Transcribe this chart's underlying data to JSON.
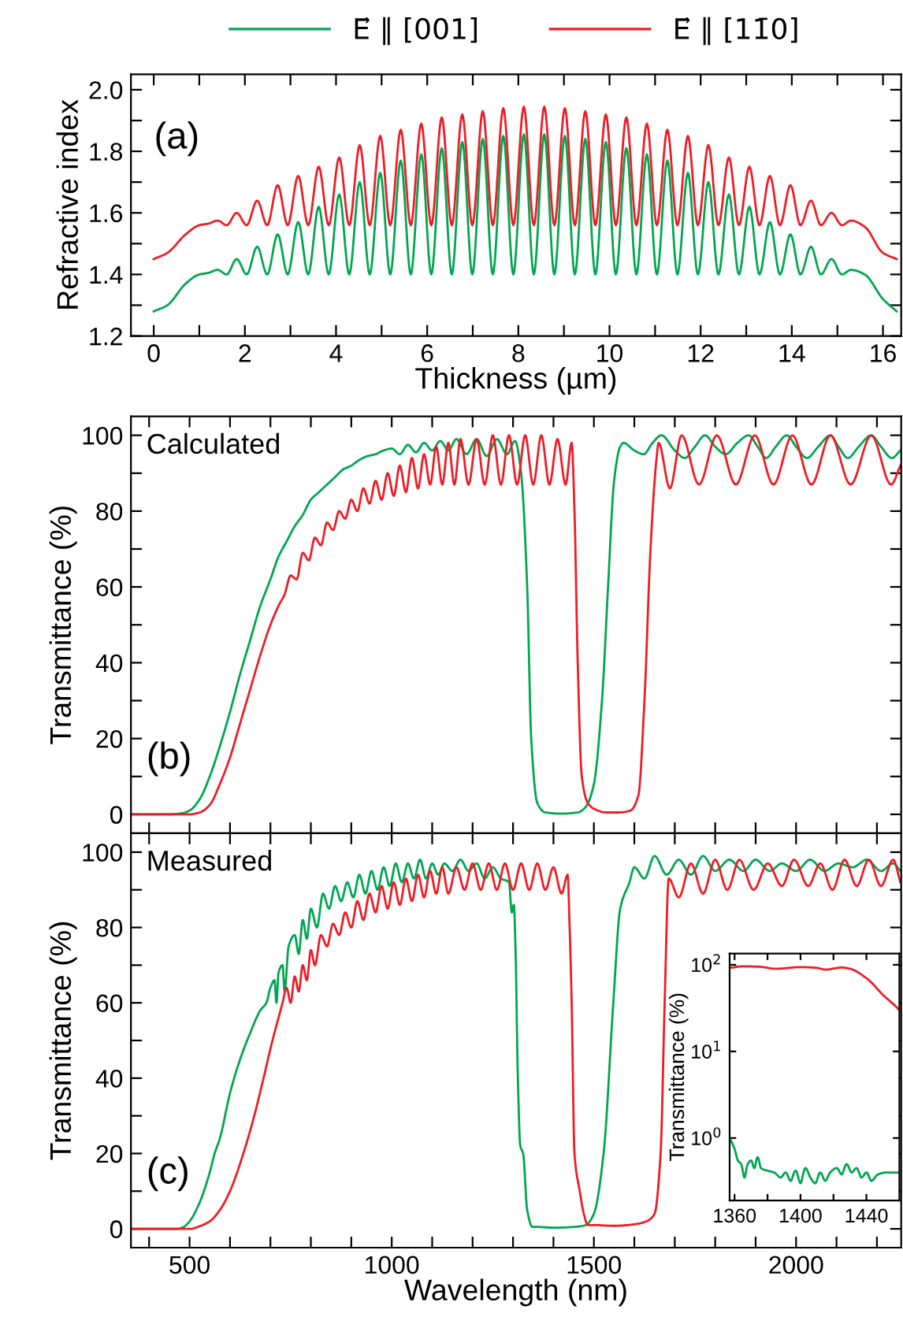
{
  "chart_data": [
    {
      "type": "line",
      "xlabel": "Thickness (µm)",
      "ylabel": "Refractive index",
      "annotations": [
        "(a)"
      ],
      "legend": "top",
      "xlim": [
        -0.5,
        16.4
      ],
      "xticks": [
        0,
        {
          "value": 1,
          "label": null
        },
        2,
        {
          "value": 3,
          "label": null
        },
        4,
        {
          "value": 5,
          "label": null
        },
        6,
        {
          "value": 7,
          "label": null
        },
        8,
        {
          "value": 9,
          "label": null
        },
        10,
        {
          "value": 11,
          "label": null
        },
        12,
        {
          "value": 13,
          "label": null
        },
        14,
        {
          "value": 15,
          "label": null
        },
        16
      ],
      "ylim": [
        1.2,
        2.05
      ],
      "yticks": [
        {
          "value": 1.2,
          "label": "1.2"
        },
        {
          "value": 1.3,
          "label": null
        },
        {
          "value": 1.4,
          "label": "1.4"
        },
        {
          "value": 1.5,
          "label": null
        },
        {
          "value": 1.6,
          "label": "1.6"
        },
        {
          "value": 1.7,
          "label": null
        },
        {
          "value": 1.8,
          "label": "1.8"
        },
        {
          "value": 1.9,
          "label": null
        },
        {
          "value": 2.0,
          "label": "2.0"
        }
      ],
      "x": [
        0,
        0.3,
        0.7,
        1.0,
        1.2,
        1.4,
        1.6,
        1.82,
        2.04,
        2.27,
        2.49,
        2.72,
        2.94,
        3.17,
        3.39,
        3.62,
        3.84,
        4.07,
        4.29,
        4.52,
        4.74,
        4.97,
        5.19,
        5.42,
        5.64,
        5.87,
        6.09,
        6.32,
        6.54,
        6.77,
        6.99,
        7.22,
        7.44,
        7.67,
        7.89,
        8.12,
        8.34,
        8.57,
        8.79,
        9.02,
        9.24,
        9.47,
        9.69,
        9.92,
        10.14,
        10.37,
        10.59,
        10.82,
        11.04,
        11.27,
        11.49,
        11.72,
        11.94,
        12.17,
        12.39,
        12.62,
        12.84,
        13.07,
        13.29,
        13.52,
        13.74,
        13.97,
        14.19,
        14.42,
        14.64,
        14.87,
        15.1,
        15.3,
        15.6,
        16.0,
        16.3
      ],
      "series": [
        {
          "name": "E⃗ ∥ [001]",
          "color": "#00a650",
          "values": [
            1.28,
            1.3,
            1.37,
            1.4,
            1.405,
            1.415,
            1.4,
            1.45,
            1.4,
            1.49,
            1.4,
            1.53,
            1.4,
            1.57,
            1.4,
            1.62,
            1.4,
            1.66,
            1.4,
            1.7,
            1.4,
            1.73,
            1.4,
            1.77,
            1.4,
            1.79,
            1.4,
            1.81,
            1.4,
            1.83,
            1.4,
            1.84,
            1.4,
            1.85,
            1.4,
            1.855,
            1.4,
            1.855,
            1.4,
            1.85,
            1.4,
            1.84,
            1.4,
            1.83,
            1.4,
            1.81,
            1.4,
            1.79,
            1.4,
            1.77,
            1.4,
            1.73,
            1.4,
            1.7,
            1.4,
            1.66,
            1.4,
            1.62,
            1.4,
            1.57,
            1.4,
            1.53,
            1.4,
            1.49,
            1.4,
            1.45,
            1.4,
            1.415,
            1.4,
            1.32,
            1.28
          ]
        },
        {
          "name": "E⃗ ∥ [11̄0]",
          "color": "#ee1c25",
          "values": [
            1.45,
            1.47,
            1.53,
            1.56,
            1.565,
            1.575,
            1.56,
            1.6,
            1.56,
            1.64,
            1.56,
            1.69,
            1.56,
            1.72,
            1.56,
            1.75,
            1.56,
            1.78,
            1.56,
            1.82,
            1.56,
            1.85,
            1.56,
            1.87,
            1.56,
            1.89,
            1.56,
            1.91,
            1.56,
            1.92,
            1.56,
            1.93,
            1.56,
            1.94,
            1.56,
            1.945,
            1.56,
            1.945,
            1.56,
            1.94,
            1.56,
            1.93,
            1.56,
            1.92,
            1.56,
            1.91,
            1.56,
            1.89,
            1.56,
            1.87,
            1.56,
            1.85,
            1.56,
            1.82,
            1.56,
            1.78,
            1.56,
            1.75,
            1.56,
            1.72,
            1.56,
            1.69,
            1.56,
            1.64,
            1.56,
            1.6,
            1.56,
            1.575,
            1.555,
            1.47,
            1.45
          ]
        }
      ]
    },
    {
      "type": "line",
      "ylabel": "Transmittance (%)",
      "annotations": [
        "Calculated",
        "(b)"
      ],
      "tick_labels": "y",
      "xlim": [
        355,
        2260
      ],
      "xticks": [
        {
          "value": 400,
          "label": null
        },
        500,
        {
          "value": 600,
          "label": null
        },
        {
          "value": 700,
          "label": null
        },
        {
          "value": 800,
          "label": null
        },
        {
          "value": 900,
          "label": null
        },
        1000,
        {
          "value": 1100,
          "label": null
        },
        {
          "value": 1200,
          "label": null
        },
        {
          "value": 1300,
          "label": null
        },
        {
          "value": 1400,
          "label": null
        },
        1500,
        {
          "value": 1600,
          "label": null
        },
        {
          "value": 1700,
          "label": null
        },
        {
          "value": 1800,
          "label": null
        },
        {
          "value": 1900,
          "label": null
        },
        2000,
        {
          "value": 2100,
          "label": null
        },
        {
          "value": 2200,
          "label": null
        }
      ],
      "ylim": [
        -5,
        105
      ],
      "yticks": [
        0,
        {
          "value": 10,
          "label": null
        },
        20,
        {
          "value": 30,
          "label": null
        },
        40,
        {
          "value": 50,
          "label": null
        },
        60,
        {
          "value": 70,
          "label": null
        },
        80,
        {
          "value": 90,
          "label": null
        },
        100
      ],
      "series": [
        {
          "color": "#00a650",
          "x": [
            355,
            450,
            480,
            500,
            525,
            550,
            575,
            600,
            625,
            650,
            675,
            700,
            720,
            740,
            760,
            780,
            800,
            820,
            840,
            860,
            880,
            900,
            920,
            940,
            960,
            980,
            1000,
            1020,
            1040,
            1060,
            1080,
            1100,
            1120,
            1140,
            1160,
            1185,
            1210,
            1235,
            1260,
            1285,
            1305,
            1320,
            1335,
            1345,
            1360,
            1380,
            1420,
            1460,
            1480,
            1500,
            1520,
            1535,
            1550,
            1565,
            1573,
            1600,
            1623,
            1645,
            1667,
            1700,
            1725,
            1750,
            1775,
            1800,
            1826,
            1855,
            1883,
            1905,
            1926,
            1950,
            1977,
            2000,
            2027,
            2055,
            2085,
            2105,
            2128,
            2155,
            2186,
            2210,
            2237,
            2258
          ],
          "values": [
            0,
            0,
            0.3,
            1,
            4,
            10,
            18,
            27,
            37,
            46,
            55,
            62,
            68,
            72,
            76,
            79,
            83,
            85,
            87,
            89,
            91,
            92,
            93.5,
            94.5,
            95,
            96,
            96.5,
            95,
            97.5,
            95.5,
            98,
            96,
            98.5,
            96,
            99,
            95,
            99,
            94.5,
            99,
            95,
            98.5,
            90,
            60,
            20,
            3,
            0.5,
            0.2,
            0.5,
            2,
            8,
            30,
            60,
            88,
            97,
            98,
            96,
            95,
            98,
            100,
            96,
            94,
            97,
            100,
            97,
            95,
            98,
            100,
            97,
            94,
            97,
            100,
            97,
            94,
            97,
            100,
            97,
            94,
            97,
            100,
            97,
            94,
            96
          ]
        },
        {
          "color": "#ee1c25",
          "x": [
            355,
            500,
            525,
            550,
            575,
            600,
            625,
            650,
            675,
            700,
            720,
            735,
            750,
            765,
            780,
            795,
            810,
            825,
            840,
            855,
            870,
            885,
            900,
            915,
            930,
            945,
            960,
            975,
            990,
            1005,
            1020,
            1035,
            1050,
            1065,
            1080,
            1095,
            1110,
            1125,
            1140,
            1155,
            1170,
            1190,
            1210,
            1230,
            1250,
            1270,
            1290,
            1310,
            1330,
            1350,
            1370,
            1390,
            1410,
            1430,
            1445,
            1452,
            1460,
            1470,
            1485,
            1500,
            1530,
            1560,
            1590,
            1610,
            1625,
            1640,
            1655,
            1660,
            1688,
            1717,
            1760,
            1804,
            1851,
            1898,
            1944,
            1991,
            2038,
            2085,
            2135,
            2186,
            2235,
            2258
          ],
          "values": [
            0,
            0,
            0.5,
            2.5,
            8,
            15,
            24,
            33,
            42,
            50,
            55,
            58,
            63,
            62,
            69,
            67,
            73,
            71,
            77,
            75,
            80,
            78,
            83,
            80,
            86,
            82,
            88,
            83,
            90,
            84,
            92,
            85,
            94,
            86,
            95,
            87,
            97,
            87,
            98,
            87,
            99,
            87,
            99,
            87,
            100,
            87,
            100,
            87,
            100,
            87,
            100,
            87,
            99,
            87,
            98,
            80,
            40,
            10,
            3,
            1.5,
            0.5,
            0.5,
            1,
            5,
            30,
            70,
            94,
            98,
            86,
            100,
            87,
            100,
            87,
            100,
            87,
            100,
            87,
            100,
            87,
            100,
            87,
            92
          ]
        }
      ]
    },
    {
      "type": "line",
      "xlabel": "Wavelength (nm)",
      "ylabel": "Transmittance (%)",
      "annotations": [
        "Measured",
        "(c)"
      ],
      "xlim": [
        355,
        2260
      ],
      "xticks": [
        {
          "value": 400,
          "label": null
        },
        500,
        {
          "value": 600,
          "label": null
        },
        {
          "value": 700,
          "label": null
        },
        {
          "value": 800,
          "label": null
        },
        {
          "value": 900,
          "label": null
        },
        1000,
        {
          "value": 1100,
          "label": null
        },
        {
          "value": 1200,
          "label": null
        },
        {
          "value": 1300,
          "label": null
        },
        {
          "value": 1400,
          "label": null
        },
        1500,
        {
          "value": 1600,
          "label": null
        },
        {
          "value": 1700,
          "label": null
        },
        {
          "value": 1800,
          "label": null
        },
        {
          "value": 1900,
          "label": null
        },
        2000,
        {
          "value": 2100,
          "label": null
        },
        {
          "value": 2200,
          "label": null
        }
      ],
      "ylim": [
        -5,
        105
      ],
      "yticks": [
        0,
        {
          "value": 10,
          "label": null
        },
        20,
        {
          "value": 30,
          "label": null
        },
        40,
        {
          "value": 50,
          "label": null
        },
        60,
        {
          "value": 70,
          "label": null
        },
        80,
        {
          "value": 90,
          "label": null
        },
        100
      ],
      "series": [
        {
          "color": "#00a650",
          "x": [
            355,
            470,
            485,
            500,
            525,
            550,
            562,
            575,
            600,
            625,
            650,
            675,
            690,
            700,
            710,
            715,
            720,
            730,
            735,
            745,
            760,
            770,
            780,
            790,
            800,
            815,
            830,
            845,
            860,
            875,
            890,
            905,
            920,
            935,
            950,
            965,
            980,
            995,
            1010,
            1025,
            1040,
            1055,
            1070,
            1085,
            1100,
            1115,
            1130,
            1150,
            1170,
            1190,
            1210,
            1230,
            1250,
            1270,
            1290,
            1297,
            1302,
            1306,
            1312,
            1318,
            1325,
            1335,
            1348,
            1360,
            1400,
            1450,
            1480,
            1500,
            1524,
            1548,
            1565,
            1588,
            1600,
            1625,
            1650,
            1680,
            1710,
            1740,
            1770,
            1800,
            1835,
            1870,
            1900,
            1935,
            1965,
            2000,
            2035,
            2070,
            2105,
            2140,
            2175,
            2210,
            2240,
            2258
          ],
          "values": [
            0,
            0,
            0.5,
            2,
            7,
            15,
            20,
            24,
            36,
            45,
            52,
            58,
            60,
            64,
            66,
            60,
            68,
            70,
            63,
            75,
            78,
            73,
            82,
            77,
            85,
            80,
            89,
            85,
            91,
            87,
            92,
            88,
            94,
            89,
            95,
            90,
            96,
            91,
            97,
            92,
            97,
            93,
            98,
            93,
            97,
            94,
            97,
            95,
            98,
            95,
            97,
            93,
            96,
            93,
            92,
            84,
            86,
            75,
            40,
            22,
            20,
            5,
            0.5,
            0.5,
            0.3,
            0.5,
            1,
            4,
            20,
            60,
            85,
            92,
            96,
            93,
            99,
            94,
            98,
            94,
            99,
            95,
            98,
            95,
            98,
            95,
            97,
            95,
            98,
            95,
            97,
            96,
            98,
            95,
            97,
            95
          ]
        },
        {
          "color": "#ee1c25",
          "x": [
            355,
            504,
            520,
            550,
            575,
            600,
            633,
            660,
            683,
            705,
            720,
            730,
            740,
            750,
            760,
            770,
            780,
            790,
            800,
            810,
            825,
            840,
            855,
            870,
            885,
            900,
            915,
            930,
            945,
            960,
            975,
            990,
            1005,
            1020,
            1035,
            1050,
            1065,
            1080,
            1095,
            1110,
            1125,
            1140,
            1160,
            1180,
            1200,
            1220,
            1240,
            1260,
            1280,
            1300,
            1320,
            1340,
            1360,
            1380,
            1400,
            1420,
            1435,
            1440,
            1445,
            1452,
            1465,
            1475,
            1485,
            1500,
            1550,
            1600,
            1630,
            1650,
            1665,
            1675,
            1685,
            1710,
            1740,
            1770,
            1800,
            1830,
            1860,
            1895,
            1930,
            1965,
            1995,
            2030,
            2060,
            2090,
            2120,
            2150,
            2180,
            2210,
            2240,
            2258
          ],
          "values": [
            0,
            0,
            0.5,
            2,
            5,
            10,
            20,
            30,
            40,
            50,
            56,
            60,
            64,
            60,
            67,
            63,
            70,
            66,
            74,
            70,
            78,
            75,
            81,
            78,
            84,
            80,
            87,
            82,
            89,
            84,
            91,
            85,
            92,
            86,
            93,
            87,
            94,
            88,
            95,
            89,
            96,
            89,
            96,
            90,
            97,
            90,
            97,
            90,
            97,
            90,
            97,
            90,
            97,
            90,
            96,
            89,
            94,
            80,
            60,
            20,
            10,
            4,
            1,
            1,
            0.8,
            1.2,
            2,
            4,
            20,
            60,
            93,
            88,
            97,
            89,
            98,
            90,
            98,
            90,
            97,
            91,
            98,
            91,
            97,
            90,
            98,
            91,
            98,
            91,
            98,
            92
          ]
        }
      ]
    },
    {
      "type": "line",
      "ylabel": "Transmittance (%)",
      "log": "y",
      "xlim": [
        1357,
        1460
      ],
      "xticks": [
        1360,
        {
          "value": 1380,
          "label": null
        },
        1400,
        {
          "value": 1420,
          "label": null
        },
        1440
      ],
      "ylim": [
        0.19,
        135
      ],
      "yticks": [
        {
          "value": 1,
          "label": "10$^{0}$"
        },
        {
          "value": 10,
          "label": "10$^{1}$"
        },
        {
          "value": 100,
          "label": "10$^{2}$"
        }
      ],
      "series": [
        {
          "color": "#00a650",
          "x": [
            1357,
            1360,
            1362,
            1364,
            1366,
            1368,
            1370,
            1372,
            1374,
            1376,
            1380,
            1384,
            1388,
            1391,
            1394,
            1397,
            1400,
            1403,
            1406,
            1409,
            1412,
            1415,
            1418,
            1422,
            1425,
            1428,
            1431,
            1434,
            1437,
            1440,
            1443,
            1447,
            1452,
            1460
          ],
          "values": [
            1.0,
            0.75,
            0.55,
            0.5,
            0.35,
            0.5,
            0.55,
            0.45,
            0.6,
            0.45,
            0.42,
            0.4,
            0.35,
            0.4,
            0.32,
            0.42,
            0.3,
            0.45,
            0.35,
            0.3,
            0.4,
            0.32,
            0.4,
            0.45,
            0.38,
            0.5,
            0.4,
            0.45,
            0.35,
            0.4,
            0.32,
            0.38,
            0.4,
            0.4
          ]
        },
        {
          "color": "#ee1c25",
          "x": [
            1357,
            1365,
            1375,
            1385,
            1400,
            1410,
            1415,
            1425,
            1430,
            1440,
            1450,
            1460
          ],
          "values": [
            92,
            96,
            95,
            90,
            94,
            92,
            88,
            93,
            90,
            70,
            45,
            30
          ]
        }
      ]
    }
  ]
}
